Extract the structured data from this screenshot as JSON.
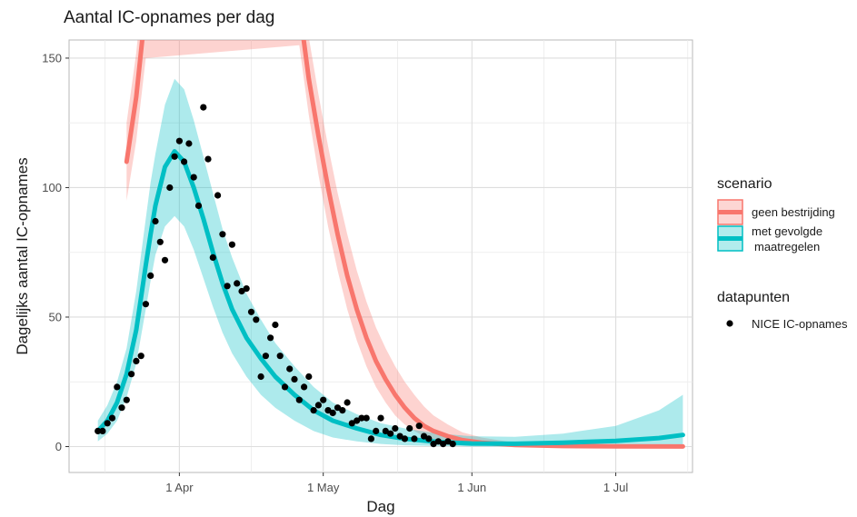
{
  "chart_data": {
    "type": "line",
    "title": "Aantal IC-opnames per dag",
    "xlabel": "Dag",
    "ylabel": "Dagelijks aantal IC-opnames",
    "x_range": [
      "2020-03-09",
      "2020-07-17"
    ],
    "ylim": [
      -10,
      157
    ],
    "x_ticks": [
      {
        "date": "2020-04-01",
        "label": "1 Apr"
      },
      {
        "date": "2020-05-01",
        "label": "1 May"
      },
      {
        "date": "2020-06-01",
        "label": "1 Jun"
      },
      {
        "date": "2020-07-01",
        "label": "1 Jul"
      }
    ],
    "y_ticks": [
      0,
      50,
      100,
      150
    ],
    "grid": true,
    "legend": {
      "placement": "right",
      "scenario_title": "scenario",
      "datapunten_title": "datapunten",
      "items": [
        {
          "label": "geen bestrijding",
          "color": "#F8766D"
        },
        {
          "label_lines": [
            "met gevolgde",
            "maatregelen"
          ],
          "color": "#00BFC4"
        }
      ],
      "points_label": "NICE IC-opnames"
    },
    "series": [
      {
        "name": "geen bestrijding",
        "color": "#F8766D",
        "x": [
          "2020-03-21",
          "2020-03-23",
          "2020-03-25",
          "2020-04-26",
          "2020-04-28",
          "2020-04-30",
          "2020-05-02",
          "2020-05-04",
          "2020-05-06",
          "2020-05-08",
          "2020-05-10",
          "2020-05-12",
          "2020-05-14",
          "2020-05-16",
          "2020-05-18",
          "2020-05-20",
          "2020-05-22",
          "2020-05-24",
          "2020-05-27",
          "2020-05-30",
          "2020-06-03",
          "2020-06-10",
          "2020-06-20",
          "2020-07-01",
          "2020-07-15"
        ],
        "y": [
          110,
          135,
          170,
          170,
          142,
          120,
          100,
          82,
          66,
          53,
          42,
          33,
          26,
          20,
          15,
          11,
          8,
          6,
          4,
          2.5,
          1.5,
          0.6,
          0.2,
          0.1,
          0.05
        ],
        "lower": [
          95,
          118,
          150,
          155,
          128,
          105,
          85,
          68,
          53,
          41,
          31,
          23,
          17,
          12,
          8.5,
          6,
          4,
          2.8,
          1.6,
          0.9,
          0.4,
          0.1,
          0,
          0,
          0
        ],
        "upper": [
          125,
          152,
          190,
          190,
          158,
          136,
          116,
          98,
          82,
          68,
          56,
          46,
          38,
          31,
          25,
          20,
          15.5,
          12,
          8.5,
          5.5,
          3.5,
          1.5,
          0.6,
          0.3,
          0.2
        ]
      },
      {
        "name": "met gevolgde maatregelen",
        "color": "#00BFC4",
        "x": [
          "2020-03-15",
          "2020-03-17",
          "2020-03-19",
          "2020-03-21",
          "2020-03-23",
          "2020-03-25",
          "2020-03-26",
          "2020-03-27",
          "2020-03-29",
          "2020-03-31",
          "2020-04-02",
          "2020-04-04",
          "2020-04-06",
          "2020-04-08",
          "2020-04-10",
          "2020-04-12",
          "2020-04-15",
          "2020-04-18",
          "2020-04-21",
          "2020-04-25",
          "2020-04-29",
          "2020-05-03",
          "2020-05-08",
          "2020-05-13",
          "2020-05-18",
          "2020-05-25",
          "2020-06-01",
          "2020-06-10",
          "2020-06-20",
          "2020-07-01",
          "2020-07-10",
          "2020-07-15"
        ],
        "y": [
          6,
          10,
          17,
          28,
          45,
          70,
          82,
          93,
          108,
          114,
          110,
          100,
          88,
          75,
          63,
          53,
          42,
          34,
          27,
          20,
          14,
          10,
          7,
          4.5,
          3,
          1.8,
          1.2,
          1.1,
          1.5,
          2.2,
          3.3,
          4.5
        ],
        "lower": [
          2,
          5,
          10,
          19,
          32,
          53,
          64,
          74,
          85,
          89,
          85,
          76,
          65,
          54,
          44,
          36,
          27,
          20,
          15,
          10,
          6,
          3.5,
          2,
          1,
          0.5,
          0.2,
          0.1,
          0.1,
          0.1,
          0.2,
          0.3,
          0.4
        ],
        "upper": [
          10,
          16,
          25,
          38,
          60,
          88,
          102,
          113,
          132,
          142,
          138,
          126,
          112,
          98,
          84,
          73,
          59,
          49,
          40,
          31,
          23,
          17,
          12.5,
          9,
          7,
          5,
          4,
          3.8,
          5,
          8,
          14,
          20
        ]
      }
    ],
    "points": {
      "name": "NICE IC-opnames",
      "color": "#000000",
      "x": [
        "2020-03-15",
        "2020-03-16",
        "2020-03-17",
        "2020-03-18",
        "2020-03-19",
        "2020-03-20",
        "2020-03-21",
        "2020-03-22",
        "2020-03-23",
        "2020-03-24",
        "2020-03-25",
        "2020-03-26",
        "2020-03-27",
        "2020-03-28",
        "2020-03-29",
        "2020-03-30",
        "2020-03-31",
        "2020-04-01",
        "2020-04-02",
        "2020-04-03",
        "2020-04-04",
        "2020-04-05",
        "2020-04-06",
        "2020-04-07",
        "2020-04-08",
        "2020-04-09",
        "2020-04-10",
        "2020-04-11",
        "2020-04-12",
        "2020-04-13",
        "2020-04-14",
        "2020-04-15",
        "2020-04-16",
        "2020-04-17",
        "2020-04-18",
        "2020-04-19",
        "2020-04-20",
        "2020-04-21",
        "2020-04-22",
        "2020-04-23",
        "2020-04-24",
        "2020-04-25",
        "2020-04-26",
        "2020-04-27",
        "2020-04-28",
        "2020-04-29",
        "2020-04-30",
        "2020-05-01",
        "2020-05-02",
        "2020-05-03",
        "2020-05-04",
        "2020-05-05",
        "2020-05-06",
        "2020-05-07",
        "2020-05-08",
        "2020-05-09",
        "2020-05-10",
        "2020-05-11",
        "2020-05-12",
        "2020-05-13",
        "2020-05-14",
        "2020-05-15",
        "2020-05-16",
        "2020-05-17",
        "2020-05-18",
        "2020-05-19",
        "2020-05-20",
        "2020-05-21",
        "2020-05-22",
        "2020-05-23",
        "2020-05-24",
        "2020-05-25",
        "2020-05-26",
        "2020-05-27",
        "2020-05-28"
      ],
      "y": [
        6,
        6,
        9,
        11,
        23,
        15,
        18,
        28,
        33,
        35,
        55,
        66,
        87,
        79,
        72,
        100,
        112,
        118,
        110,
        117,
        104,
        93,
        131,
        111,
        73,
        97,
        82,
        62,
        78,
        63,
        60,
        61,
        52,
        49,
        27,
        35,
        42,
        47,
        35,
        23,
        30,
        26,
        18,
        23,
        27,
        14,
        16,
        18,
        14,
        13,
        15,
        14,
        17,
        9,
        10,
        11,
        11,
        3,
        6,
        11,
        6,
        5,
        7,
        4,
        3,
        7,
        3,
        8,
        4,
        3,
        1,
        2,
        1,
        2,
        1
      ]
    }
  }
}
